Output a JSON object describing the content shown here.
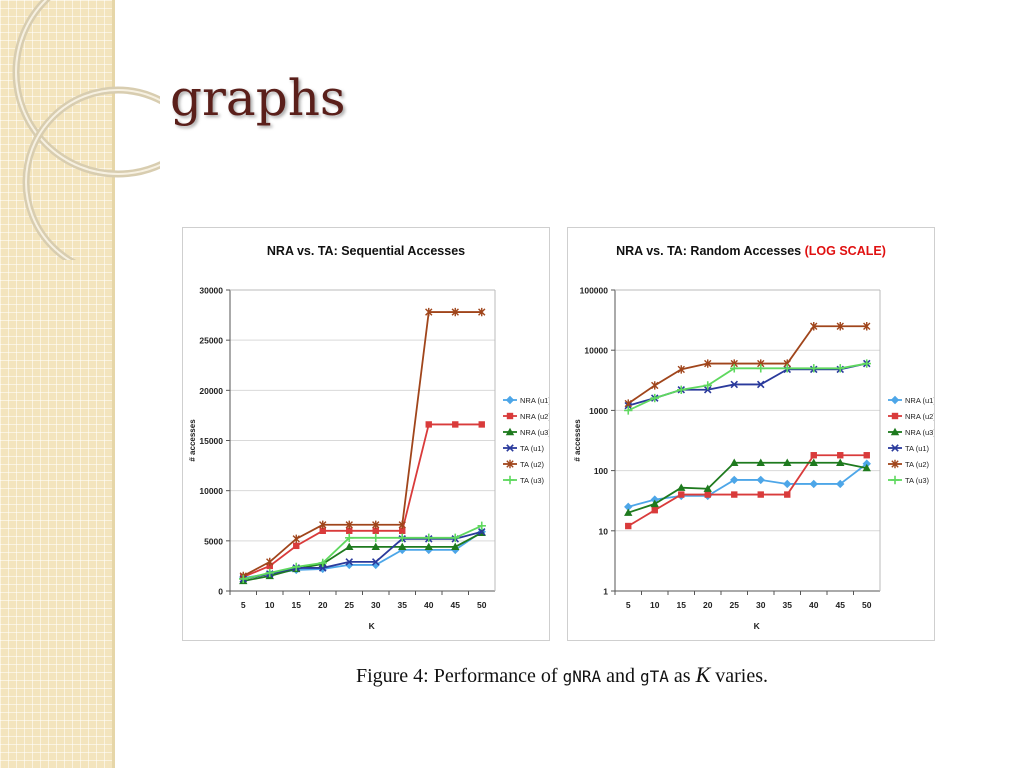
{
  "slide": {
    "title": "graphs",
    "caption": {
      "prefix": "Figure 4:  Performance of ",
      "algo1": "gNRA",
      "middle": " and ",
      "algo2": "gTA",
      "as": " as ",
      "var": "K",
      "suffix": " varies."
    }
  },
  "colors": {
    "side_strip": "#f3e4bd",
    "title": "#5a1f1a",
    "log_scale_label": "#e01010"
  },
  "chart_data": [
    {
      "type": "line",
      "title": "NRA vs. TA: Sequential Accesses",
      "xlabel": "K",
      "ylabel": "# accesses",
      "x": [
        5,
        10,
        15,
        20,
        25,
        30,
        35,
        40,
        45,
        50
      ],
      "ylim": [
        0,
        30000
      ],
      "yticks": [
        0,
        5000,
        10000,
        15000,
        20000,
        25000,
        30000
      ],
      "yscale": "linear",
      "grid": true,
      "legend_position": "right",
      "series": [
        {
          "name": "NRA (u1)",
          "color": "#4da6e8",
          "marker": "diamond",
          "values": [
            1300,
            1700,
            2100,
            2200,
            2600,
            2600,
            4100,
            4100,
            4100,
            5900
          ]
        },
        {
          "name": "NRA (u2)",
          "color": "#d93b3b",
          "marker": "square",
          "values": [
            1400,
            2500,
            4500,
            6000,
            6000,
            6000,
            6000,
            16600,
            16600,
            16600
          ]
        },
        {
          "name": "NRA (u3)",
          "color": "#1e7a1e",
          "marker": "triangle",
          "values": [
            1000,
            1500,
            2200,
            2700,
            4400,
            4400,
            4400,
            4400,
            4400,
            5800
          ]
        },
        {
          "name": "TA (u1)",
          "color": "#2a3a9c",
          "marker": "x",
          "values": [
            1200,
            1700,
            2300,
            2300,
            2900,
            2900,
            5200,
            5200,
            5200,
            5900
          ]
        },
        {
          "name": "TA (u2)",
          "color": "#a0451b",
          "marker": "star",
          "values": [
            1500,
            2900,
            5200,
            6600,
            6600,
            6600,
            6600,
            27800,
            27800,
            27800
          ]
        },
        {
          "name": "TA (u3)",
          "color": "#5fd85f",
          "marker": "plus",
          "values": [
            1200,
            1800,
            2400,
            2800,
            5300,
            5300,
            5300,
            5300,
            5300,
            6500
          ]
        }
      ]
    },
    {
      "type": "line",
      "title": "NRA vs. TA: Random Accesses",
      "title_suffix": "(LOG SCALE)",
      "xlabel": "K",
      "ylabel": "# accesses",
      "x": [
        5,
        10,
        15,
        20,
        25,
        30,
        35,
        40,
        45,
        50
      ],
      "ylim": [
        1,
        100000
      ],
      "yticks": [
        1,
        10,
        100,
        1000,
        10000,
        100000
      ],
      "yscale": "log",
      "grid": true,
      "legend_position": "right",
      "series": [
        {
          "name": "NRA (u1)",
          "color": "#4da6e8",
          "marker": "diamond",
          "values": [
            25,
            33,
            38,
            38,
            70,
            70,
            60,
            60,
            60,
            130
          ]
        },
        {
          "name": "NRA (u2)",
          "color": "#d93b3b",
          "marker": "square",
          "values": [
            12,
            22,
            40,
            40,
            40,
            40,
            40,
            180,
            180,
            180
          ]
        },
        {
          "name": "NRA (u3)",
          "color": "#1e7a1e",
          "marker": "triangle",
          "values": [
            20,
            28,
            52,
            50,
            135,
            135,
            135,
            135,
            135,
            110
          ]
        },
        {
          "name": "TA (u1)",
          "color": "#2a3a9c",
          "marker": "x",
          "values": [
            1200,
            1600,
            2200,
            2200,
            2700,
            2700,
            4800,
            4800,
            4800,
            6000
          ]
        },
        {
          "name": "TA (u2)",
          "color": "#a0451b",
          "marker": "star",
          "values": [
            1300,
            2600,
            4800,
            6000,
            6000,
            6000,
            6000,
            25000,
            25000,
            25000
          ]
        },
        {
          "name": "TA (u3)",
          "color": "#5fd85f",
          "marker": "plus",
          "values": [
            1000,
            1600,
            2200,
            2600,
            5000,
            5000,
            5000,
            5000,
            5000,
            6000
          ]
        }
      ]
    }
  ]
}
